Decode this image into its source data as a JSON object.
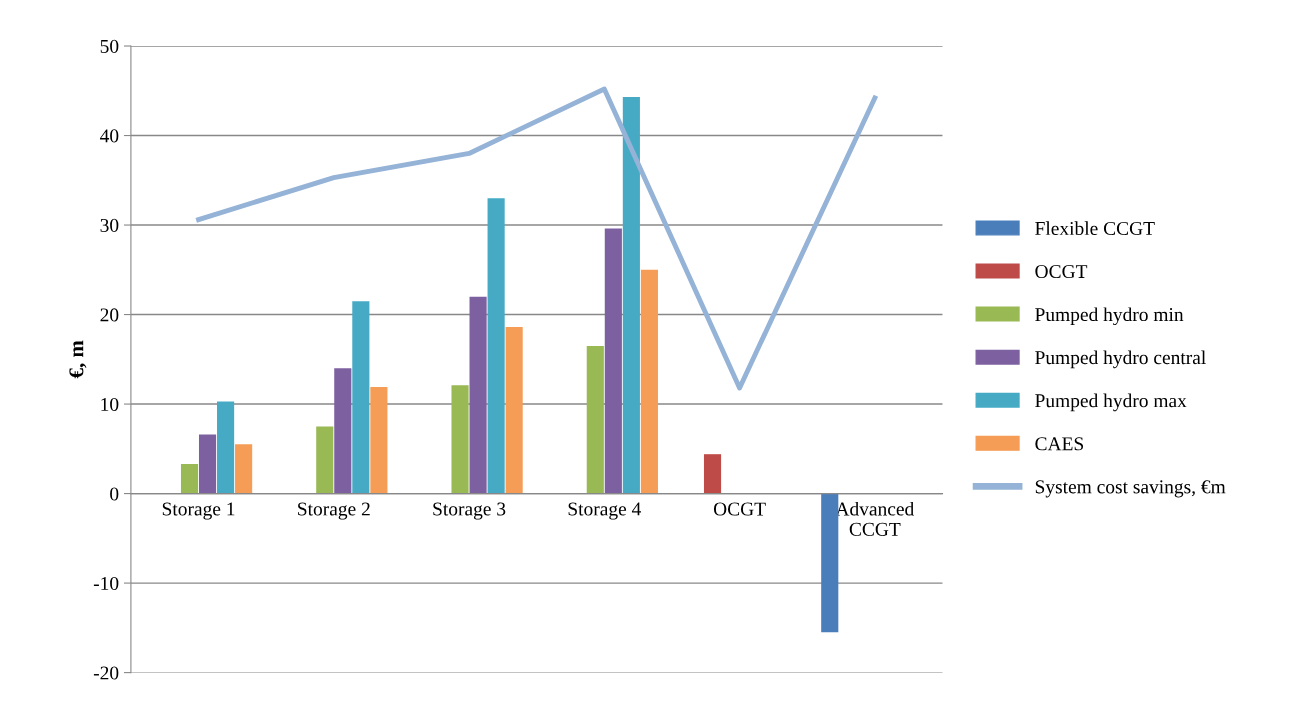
{
  "chart_data": {
    "type": "bar",
    "ylabel": "€, m",
    "categories": [
      "Storage 1",
      "Storage 2",
      "Storage 3",
      "Storage 4",
      "OCGT",
      "Advanced\nCCGT"
    ],
    "series": [
      {
        "name": "Flexible CCGT",
        "color": "#4a7ebb",
        "values": [
          null,
          null,
          null,
          null,
          null,
          -15.5
        ]
      },
      {
        "name": "OCGT",
        "color": "#be4b48",
        "values": [
          null,
          null,
          null,
          null,
          4.4,
          null
        ]
      },
      {
        "name": "Pumped hydro min",
        "color": "#98b954",
        "values": [
          3.3,
          7.5,
          12.1,
          16.5,
          null,
          null
        ]
      },
      {
        "name": "Pumped hydro central",
        "color": "#7d60a0",
        "values": [
          6.6,
          14.0,
          22.0,
          29.6,
          null,
          null
        ]
      },
      {
        "name": "Pumped hydro max",
        "color": "#46aac5",
        "values": [
          10.3,
          21.5,
          33.0,
          44.3,
          null,
          null
        ]
      },
      {
        "name": "CAES",
        "color": "#f59d56",
        "values": [
          5.5,
          11.9,
          18.6,
          25.0,
          null,
          null
        ]
      },
      {
        "name": "System cost savings, €m",
        "type": "line",
        "color": "#95b3d7",
        "values": [
          30.6,
          35.3,
          38.0,
          45.2,
          11.8,
          44.2
        ]
      }
    ],
    "ylim": [
      -20,
      50
    ],
    "yticks": [
      -20,
      -10,
      0,
      10,
      20,
      30,
      40,
      50
    ],
    "grid": "y",
    "legend": "right",
    "marker": "none"
  }
}
